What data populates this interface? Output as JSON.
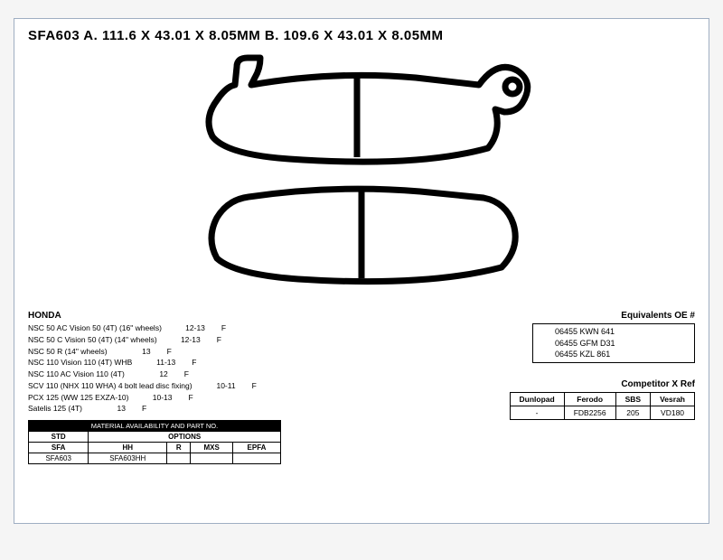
{
  "title": "SFA603  A. 111.6 X 43.01 X 8.05MM B. 109.6 X 43.01 X 8.05MM",
  "fitment": {
    "brand": "HONDA",
    "rows": [
      {
        "model": "NSC 50 AC Vision 50 (4T) (16\" wheels)",
        "yr": "12-13",
        "pos": "F"
      },
      {
        "model": "NSC 50 C Vision 50 (4T) (14\" wheels)",
        "yr": "12-13",
        "pos": "F"
      },
      {
        "model": "NSC 50 R (14\" wheels)",
        "yr": "13",
        "pos": "F"
      },
      {
        "model": "NSC 110 Vision 110 (4T) WHB",
        "yr": "11-13",
        "pos": "F"
      },
      {
        "model": "NSC 110 AC Vision 110 (4T)",
        "yr": "12",
        "pos": "F"
      },
      {
        "model": "SCV 110 (NHX 110 WHA) 4 bolt lead disc fixing)",
        "yr": "10-11",
        "pos": "F"
      },
      {
        "model": "PCX 125 (WW 125 EXZA-10)",
        "yr": "10-13",
        "pos": "F"
      },
      {
        "model": "Satelis 125 (4T)",
        "yr": "13",
        "pos": "F"
      }
    ]
  },
  "material_table": {
    "header": "MATERIAL AVAILABILITY AND PART NO.",
    "std_label": "STD",
    "opt_label": "OPTIONS",
    "cols": [
      "SFA",
      "HH",
      "R",
      "MXS",
      "EPFA"
    ],
    "row": [
      "SFA603",
      "SFA603HH",
      "",
      "",
      ""
    ]
  },
  "oe": {
    "label": "Equivalents OE #",
    "items": [
      "06455 KWN 641",
      "06455 GFM D31",
      "06455 KZL 861"
    ]
  },
  "xref": {
    "label": "Competitor X Ref",
    "cols": [
      "Dunlopad",
      "Ferodo",
      "SBS",
      "Vesrah"
    ],
    "row": [
      "-",
      "FDB2256",
      "205",
      "VD180"
    ]
  },
  "pad_style": {
    "stroke": "#000000",
    "stroke_width": 7,
    "fill": "#ffffff"
  }
}
